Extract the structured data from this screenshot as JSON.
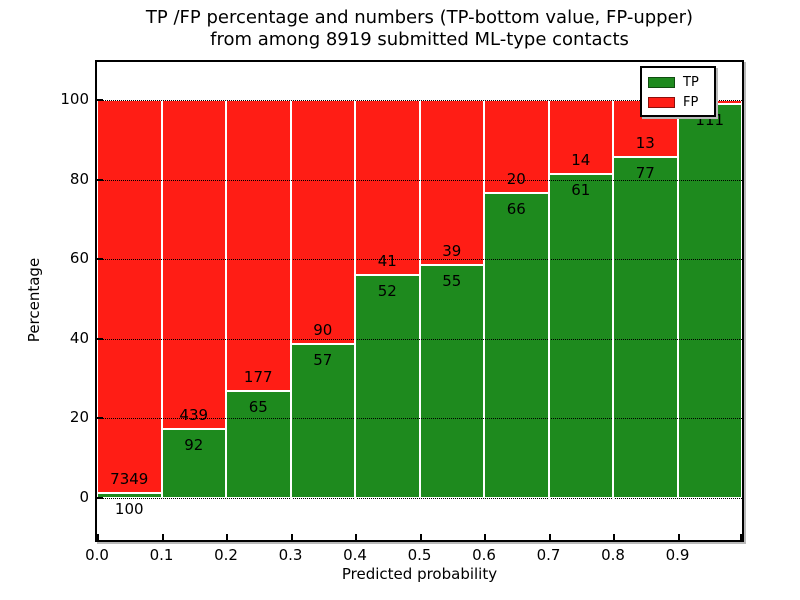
{
  "figure": {
    "title_line1": "TP /FP percentage and numbers (TP-bottom value, FP-upper)",
    "title_line2": "from among 8919 submitted ML-type contacts"
  },
  "axes": {
    "xlabel": "Predicted probability",
    "ylabel": "Percentage",
    "x_tick_labels": [
      "0.0",
      "0.1",
      "0.2",
      "0.3",
      "0.4",
      "0.5",
      "0.6",
      "0.7",
      "0.8",
      "0.9"
    ],
    "y_ticks": [
      0,
      20,
      40,
      60,
      80,
      100
    ]
  },
  "legend": {
    "items": [
      {
        "label": "TP",
        "color": "#1E8A1E"
      },
      {
        "label": "FP",
        "color": "#FF1D15"
      }
    ]
  },
  "chart_data": {
    "type": "bar",
    "stacked": true,
    "normalized_to_percent": true,
    "title": "TP /FP percentage and numbers (TP-bottom value, FP-upper) from among 8919 submitted ML-type contacts",
    "xlabel": "Predicted probability",
    "ylabel": "Percentage",
    "x_bin_edges": [
      0.0,
      0.1,
      0.2,
      0.3,
      0.4,
      0.5,
      0.6,
      0.7,
      0.8,
      0.9,
      1.0
    ],
    "xlim": [
      0.0,
      1.0
    ],
    "ylim": [
      -10.6,
      109.6
    ],
    "y_gridlines": [
      0,
      20,
      40,
      60,
      80,
      100
    ],
    "grid": true,
    "legend_position": "upper right",
    "total_submitted": 8919,
    "series": [
      {
        "name": "TP",
        "color": "#1E8A1E",
        "counts": [
          100,
          92,
          65,
          57,
          52,
          55,
          66,
          61,
          77,
          111
        ]
      },
      {
        "name": "FP",
        "color": "#FF1D15",
        "counts": [
          7349,
          439,
          177,
          90,
          41,
          39,
          20,
          14,
          13,
          1
        ]
      }
    ],
    "tp_percent_per_bin": [
      1.3,
      17.3,
      26.9,
      38.8,
      55.9,
      58.5,
      76.7,
      81.3,
      85.6,
      99.1
    ]
  },
  "colors": {
    "tp_green": "#1E8A1E",
    "fp_red": "#FF1D15",
    "background": "#FFFFFF",
    "text": "#000000",
    "h_grid": "#000000",
    "v_grid": "#FFFFFF"
  }
}
